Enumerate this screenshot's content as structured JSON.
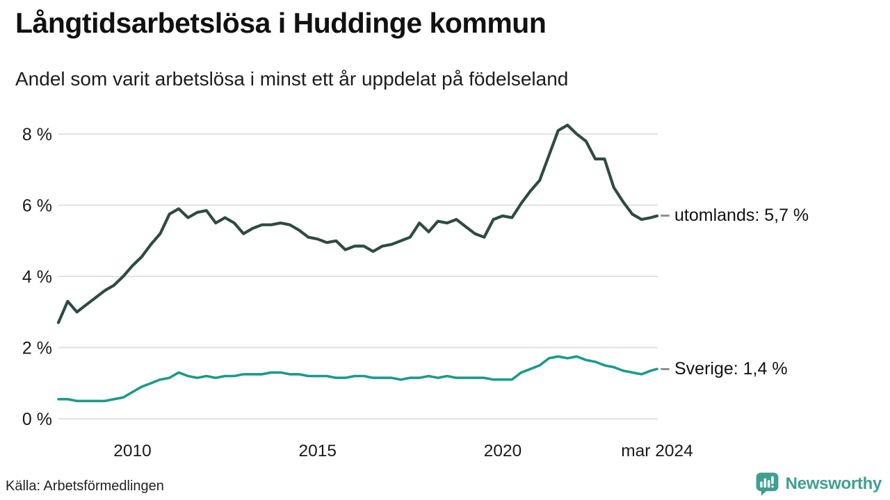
{
  "header": {
    "title": "Långtidsarbetslösa i Huddinge kommun",
    "subtitle": "Andel som varit arbetslösa i minst ett år uppdelat på födelseland"
  },
  "footer": {
    "source": "Källa: Arbetsförmedlingen",
    "brand": "Newsworthy",
    "brand_icon": "newsworthy-speech-bubble-bar-chart-icon",
    "brand_color": "#3f9f90"
  },
  "chart_data": {
    "type": "line",
    "title": "Långtidsarbetslösa i Huddinge kommun",
    "subtitle": "Andel som varit arbetslösa i minst ett år uppdelat på födelseland",
    "xlabel": "",
    "ylabel": "",
    "grid": "horizontal-only",
    "grid_color": "#e2e2e2",
    "xlim": [
      2008,
      2024.17
    ],
    "ylim": [
      0,
      8.6
    ],
    "yticks": [
      {
        "label": "0 %",
        "value": 0
      },
      {
        "label": "2 %",
        "value": 2
      },
      {
        "label": "4 %",
        "value": 4
      },
      {
        "label": "6 %",
        "value": 6
      },
      {
        "label": "8 %",
        "value": 8
      }
    ],
    "xticks": [
      {
        "label": "2010",
        "value": 2010
      },
      {
        "label": "2015",
        "value": 2015
      },
      {
        "label": "2020",
        "value": 2020
      },
      {
        "label": "mar 2024",
        "value": 2024.17
      }
    ],
    "legend_position": "end-of-line-labels",
    "x": [
      2008,
      2008.25,
      2008.5,
      2008.75,
      2009,
      2009.25,
      2009.5,
      2009.75,
      2010,
      2010.25,
      2010.5,
      2010.75,
      2011,
      2011.25,
      2011.5,
      2011.75,
      2012,
      2012.25,
      2012.5,
      2012.75,
      2013,
      2013.25,
      2013.5,
      2013.75,
      2014,
      2014.25,
      2014.5,
      2014.75,
      2015,
      2015.25,
      2015.5,
      2015.75,
      2016,
      2016.25,
      2016.5,
      2016.75,
      2017,
      2017.25,
      2017.5,
      2017.75,
      2018,
      2018.25,
      2018.5,
      2018.75,
      2019,
      2019.25,
      2019.5,
      2019.75,
      2020,
      2020.25,
      2020.5,
      2020.75,
      2021,
      2021.25,
      2021.5,
      2021.75,
      2022,
      2022.25,
      2022.5,
      2022.75,
      2023,
      2023.25,
      2023.5,
      2023.75,
      2024,
      2024.17
    ],
    "series": [
      {
        "name": "utomlands",
        "label": "utomlands: 5,7 %",
        "end_value": "5,7 %",
        "color": "#2e4b43",
        "stroke_width": 4.2,
        "values": [
          2.7,
          3.3,
          3.0,
          3.2,
          3.4,
          3.6,
          3.75,
          4.0,
          4.3,
          4.55,
          4.9,
          5.2,
          5.75,
          5.9,
          5.65,
          5.8,
          5.85,
          5.5,
          5.65,
          5.5,
          5.2,
          5.35,
          5.45,
          5.45,
          5.5,
          5.45,
          5.3,
          5.1,
          5.05,
          4.95,
          5.0,
          4.75,
          4.85,
          4.85,
          4.7,
          4.85,
          4.9,
          5.0,
          5.1,
          5.5,
          5.25,
          5.55,
          5.5,
          5.6,
          5.4,
          5.2,
          5.1,
          5.6,
          5.7,
          5.65,
          6.05,
          6.4,
          6.7,
          7.4,
          8.1,
          8.25,
          8.0,
          7.8,
          7.3,
          7.3,
          6.5,
          6.1,
          5.75,
          5.6,
          5.65,
          5.7
        ]
      },
      {
        "name": "Sverige",
        "label": "Sverige: 1,4 %",
        "end_value": "1,4 %",
        "color": "#1b9a8a",
        "stroke_width": 3.6,
        "values": [
          0.55,
          0.55,
          0.5,
          0.5,
          0.5,
          0.5,
          0.55,
          0.6,
          0.75,
          0.9,
          1.0,
          1.1,
          1.15,
          1.3,
          1.2,
          1.15,
          1.2,
          1.15,
          1.2,
          1.2,
          1.25,
          1.25,
          1.25,
          1.3,
          1.3,
          1.25,
          1.25,
          1.2,
          1.2,
          1.2,
          1.15,
          1.15,
          1.2,
          1.2,
          1.15,
          1.15,
          1.15,
          1.1,
          1.15,
          1.15,
          1.2,
          1.15,
          1.2,
          1.15,
          1.15,
          1.15,
          1.15,
          1.1,
          1.1,
          1.1,
          1.3,
          1.4,
          1.5,
          1.7,
          1.75,
          1.7,
          1.75,
          1.65,
          1.6,
          1.5,
          1.45,
          1.35,
          1.3,
          1.25,
          1.35,
          1.4
        ]
      }
    ]
  }
}
